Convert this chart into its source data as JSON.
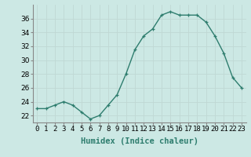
{
  "x": [
    0,
    1,
    2,
    3,
    4,
    5,
    6,
    7,
    8,
    9,
    10,
    11,
    12,
    13,
    14,
    15,
    16,
    17,
    18,
    19,
    20,
    21,
    22,
    23
  ],
  "y": [
    23.0,
    23.0,
    23.5,
    24.0,
    23.5,
    22.5,
    21.5,
    22.0,
    23.5,
    25.0,
    28.0,
    31.5,
    33.5,
    34.5,
    36.5,
    37.0,
    36.5,
    36.5,
    36.5,
    35.5,
    33.5,
    31.0,
    27.5,
    26.0
  ],
  "line_color": "#2e7d6e",
  "marker": "+",
  "marker_color": "#2e7d6e",
  "bg_color": "#cce8e4",
  "grid_color": "#c0d8d4",
  "xlabel": "Humidex (Indice chaleur)",
  "xlim": [
    -0.5,
    23.5
  ],
  "ylim": [
    21,
    38
  ],
  "yticks": [
    22,
    24,
    26,
    28,
    30,
    32,
    34,
    36
  ],
  "xticks": [
    0,
    1,
    2,
    3,
    4,
    5,
    6,
    7,
    8,
    9,
    10,
    11,
    12,
    13,
    14,
    15,
    16,
    17,
    18,
    19,
    20,
    21,
    22,
    23
  ],
  "xtick_labels": [
    "0",
    "1",
    "2",
    "3",
    "4",
    "5",
    "6",
    "7",
    "8",
    "9",
    "10",
    "11",
    "12",
    "13",
    "14",
    "15",
    "16",
    "17",
    "18",
    "19",
    "20",
    "21",
    "22",
    "23"
  ],
  "tick_fontsize": 6.5,
  "xlabel_fontsize": 7.5,
  "linewidth": 1.0,
  "markersize": 3.5,
  "spine_color": "#888888"
}
